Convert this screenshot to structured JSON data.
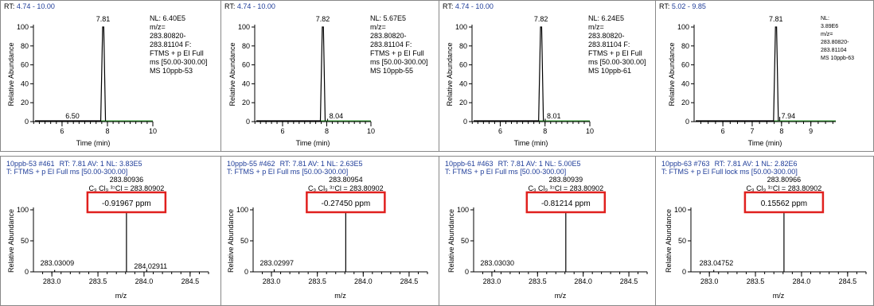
{
  "chromatograms": [
    {
      "rt_range": "4.74 - 10.00",
      "nl": "NL: 6.40E5",
      "info_lines": [
        "m/z=",
        "283.80820-",
        "283.81104 F:",
        "FTMS + p EI Full",
        "ms [50.00-300.00]",
        "MS 10ppb-53"
      ],
      "peak_label": "7.81",
      "minor_label": "6.50",
      "ylabel": "Relative Abundance",
      "xlabel": "Time (min)",
      "xticks": [
        "6",
        "8",
        "10"
      ],
      "yticks": [
        "0",
        "20",
        "40",
        "60",
        "80",
        "100"
      ]
    },
    {
      "rt_range": "4.74 - 10.00",
      "nl": "NL: 5.67E5",
      "info_lines": [
        "m/z=",
        "283.80820-",
        "283.81104 F:",
        "FTMS + p EI Full",
        "ms [50.00-300.00]",
        "MS 10ppb-55"
      ],
      "peak_label": "7.82",
      "minor_label": "8.04",
      "ylabel": "Relative Abundance",
      "xlabel": "Time (min)",
      "xticks": [
        "6",
        "8",
        "10"
      ],
      "yticks": [
        "0",
        "20",
        "40",
        "60",
        "80",
        "100"
      ]
    },
    {
      "rt_range": "4.74 - 10.00",
      "nl": "NL: 6.24E5",
      "info_lines": [
        "m/z=",
        "283.80820-",
        "283.81104 F:",
        "FTMS + p EI Full",
        "ms [50.00-300.00]",
        "MS 10ppb-61"
      ],
      "peak_label": "7.82",
      "minor_label": "8.01",
      "ylabel": "Relative Abundance",
      "xlabel": "Time (min)",
      "xticks": [
        "6",
        "8",
        "10"
      ],
      "yticks": [
        "0",
        "20",
        "40",
        "60",
        "80",
        "100"
      ]
    },
    {
      "rt_range": "5.02 - 9.85",
      "nl": "NL:",
      "info_lines": [
        "3.89E6",
        "m/z=",
        "283.80820-",
        "283.81104",
        "MS 10ppb-63"
      ],
      "peak_label": "7.81",
      "minor_label": "7.94",
      "ylabel": "Relative Abundance",
      "xlabel": "Time (min)",
      "xticks": [
        "6",
        "7",
        "8",
        "9"
      ],
      "yticks": [
        "0",
        "20",
        "40",
        "60",
        "80",
        "100"
      ]
    }
  ],
  "spectra": [
    {
      "header_id": "10ppb-53 #461",
      "header_rest": "RT: 7.81  AV: 1  NL: 3.83E5",
      "scan_line": "T: FTMS + p EI Full ms [50.00-300.00]",
      "peak_mz": "283.80936",
      "formula": "C₉ Cl₉ ³⁷Cl = 283.80902",
      "ppm": "-0.91967 ppm",
      "left_label": "283.03009",
      "right_label": "284.02911",
      "ylabel": "Relative Abundance",
      "xlabel": "m/z",
      "xticks": [
        "283.0",
        "283.5",
        "284.0",
        "284.5"
      ],
      "yticks": [
        "0",
        "50",
        "100"
      ]
    },
    {
      "header_id": "10ppb-55 #462",
      "header_rest": "RT: 7.81  AV: 1  NL: 2.63E5",
      "scan_line": "T: FTMS + p EI Full ms [50.00-300.00]",
      "peak_mz": "283.80954",
      "formula": "C₉ Cl₉ ³⁷Cl = 283.80902",
      "ppm": "-0.27450 ppm",
      "left_label": "283.02997",
      "right_label": "",
      "ylabel": "Relative Abundance",
      "xlabel": "m/z",
      "xticks": [
        "283.0",
        "283.5",
        "284.0",
        "284.5"
      ],
      "yticks": [
        "0",
        "50",
        "100"
      ]
    },
    {
      "header_id": "10ppb-61 #463",
      "header_rest": "RT: 7.81  AV: 1  NL: 5.00E5",
      "scan_line": "T: FTMS + p EI Full ms [50.00-300.00]",
      "peak_mz": "283.80939",
      "formula": "C₉ Cl₉ ³⁷Cl = 283.80902",
      "ppm": "-0.81214 ppm",
      "left_label": "283.03030",
      "right_label": "",
      "ylabel": "Relative Abundance",
      "xlabel": "m/z",
      "xticks": [
        "283.0",
        "283.5",
        "284.0",
        "284.5"
      ],
      "yticks": [
        "0",
        "50",
        "100"
      ]
    },
    {
      "header_id": "10ppb-63 #763",
      "header_rest": "RT: 7.81  AV: 1  NL: 2.82E6",
      "scan_line": "T: FTMS + p EI Full lock ms [50.00-300.00]",
      "peak_mz": "283.80966",
      "formula": "C₉ Cl₉ ³⁷Cl = 283.80902",
      "ppm": "0.15562 ppm",
      "left_label": "283.04752",
      "right_label": "",
      "ylabel": "Relative Abundance",
      "xlabel": "m/z",
      "xticks": [
        "283.0",
        "283.5",
        "284.0",
        "284.5"
      ],
      "yticks": [
        "0",
        "50",
        "100"
      ]
    }
  ],
  "chart_data": [
    {
      "type": "line",
      "panel": "chromatogram-1",
      "x_unit": "Time (min)",
      "y_unit": "Relative Abundance",
      "xlim": [
        4.74,
        10.0
      ],
      "ylim": [
        0,
        100
      ],
      "peaks": [
        {
          "x": 7.81,
          "y": 100
        },
        {
          "x": 6.5,
          "y": 1
        }
      ]
    },
    {
      "type": "line",
      "panel": "chromatogram-2",
      "x_unit": "Time (min)",
      "y_unit": "Relative Abundance",
      "xlim": [
        4.74,
        10.0
      ],
      "ylim": [
        0,
        100
      ],
      "peaks": [
        {
          "x": 7.82,
          "y": 100
        },
        {
          "x": 8.04,
          "y": 3
        }
      ]
    },
    {
      "type": "line",
      "panel": "chromatogram-3",
      "x_unit": "Time (min)",
      "y_unit": "Relative Abundance",
      "xlim": [
        4.74,
        10.0
      ],
      "ylim": [
        0,
        100
      ],
      "peaks": [
        {
          "x": 7.82,
          "y": 100
        },
        {
          "x": 8.01,
          "y": 3
        }
      ]
    },
    {
      "type": "line",
      "panel": "chromatogram-4",
      "x_unit": "Time (min)",
      "y_unit": "Relative Abundance",
      "xlim": [
        5.02,
        9.85
      ],
      "ylim": [
        0,
        100
      ],
      "peaks": [
        {
          "x": 7.81,
          "y": 100
        },
        {
          "x": 7.94,
          "y": 5
        }
      ]
    },
    {
      "type": "bar",
      "panel": "spectrum-1",
      "x_unit": "m/z",
      "y_unit": "Relative Abundance",
      "xlim": [
        282.8,
        284.7
      ],
      "ylim": [
        0,
        100
      ],
      "peaks": [
        {
          "x": 283.03009,
          "y": 3
        },
        {
          "x": 283.80936,
          "y": 100
        },
        {
          "x": 284.02911,
          "y": 4
        }
      ]
    },
    {
      "type": "bar",
      "panel": "spectrum-2",
      "x_unit": "m/z",
      "y_unit": "Relative Abundance",
      "xlim": [
        282.8,
        284.7
      ],
      "ylim": [
        0,
        100
      ],
      "peaks": [
        {
          "x": 283.02997,
          "y": 4
        },
        {
          "x": 283.80954,
          "y": 100
        }
      ]
    },
    {
      "type": "bar",
      "panel": "spectrum-3",
      "x_unit": "m/z",
      "y_unit": "Relative Abundance",
      "xlim": [
        282.8,
        284.7
      ],
      "ylim": [
        0,
        100
      ],
      "peaks": [
        {
          "x": 283.0303,
          "y": 3
        },
        {
          "x": 283.80939,
          "y": 100
        }
      ]
    },
    {
      "type": "bar",
      "panel": "spectrum-4",
      "x_unit": "m/z",
      "y_unit": "Relative Abundance",
      "xlim": [
        282.8,
        284.7
      ],
      "ylim": [
        0,
        100
      ],
      "peaks": [
        {
          "x": 283.04752,
          "y": 3
        },
        {
          "x": 283.80966,
          "y": 100
        }
      ]
    }
  ],
  "colors": {
    "trace": "#000000",
    "baseline": "#2e9e2e",
    "header_blue": "#1f3d99",
    "ppm_box": "#e0201e"
  }
}
